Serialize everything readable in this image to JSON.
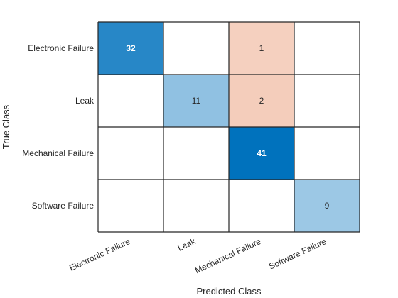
{
  "chart_data": {
    "type": "heatmap",
    "title": "",
    "xlabel": "Predicted Class",
    "ylabel": "True Class",
    "x_categories": [
      "Electronic Failure",
      "Leak",
      "Mechanical Failure",
      "Software Failure"
    ],
    "y_categories": [
      "Electronic Failure",
      "Leak",
      "Mechanical Failure",
      "Software Failure"
    ],
    "matrix": [
      [
        32,
        0,
        1,
        0
      ],
      [
        0,
        11,
        2,
        0
      ],
      [
        0,
        0,
        41,
        0
      ],
      [
        0,
        0,
        0,
        9
      ]
    ],
    "colors": {
      "diagonal_high": "#0072BD",
      "diagonal_low": "#e6f0f8",
      "off_diagonal_high": "#D95319",
      "off_diagonal_low": "#fcefe9",
      "grid": "#262626",
      "text_dark": "#262626",
      "text_light": "#ffffff"
    }
  }
}
